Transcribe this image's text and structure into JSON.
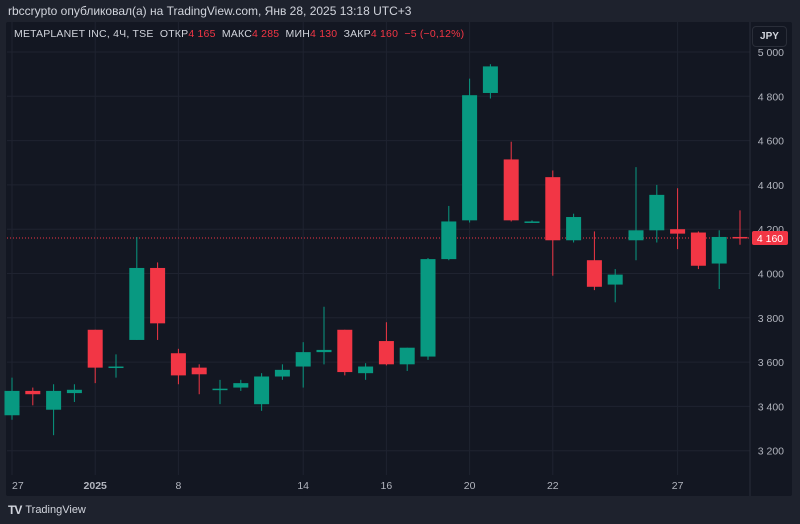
{
  "header": {
    "published": "rbccrypto опубликовал(а) на TradingView.com, Янв 28, 2025 13:18 UTC+3"
  },
  "legend": {
    "symbol": "METAPLANET INC, 4Ч, TSE",
    "open_label": "ОТКР",
    "open": "4 165",
    "high_label": "МАКС",
    "high": "4 285",
    "low_label": "МИН",
    "low": "4 130",
    "close_label": "ЗАКР",
    "close": "4 160",
    "change": "−5 (−0,12%)"
  },
  "currency_button": "JPY",
  "footer": {
    "logo_text": "TradingView"
  },
  "colors": {
    "up": "#089981",
    "down": "#f23645",
    "background": "#131722",
    "grid": "#1f2330"
  },
  "chart_data": {
    "type": "candlestick",
    "y_axis": {
      "ticks": [
        "5 000",
        "4 800",
        "4 600",
        "4 400",
        "4 200",
        "4 000",
        "3 800",
        "3 600",
        "3 400",
        "3 200"
      ],
      "tick_values": [
        5000,
        4800,
        4600,
        4400,
        4200,
        4000,
        3800,
        3600,
        3400,
        3200
      ],
      "range": [
        3150,
        5050
      ]
    },
    "x_axis": {
      "labels": [
        {
          "text": "27",
          "candle": 0
        },
        {
          "text": "2025",
          "candle": 4,
          "bold": true
        },
        {
          "text": "8",
          "candle": 8
        },
        {
          "text": "14",
          "candle": 14
        },
        {
          "text": "16",
          "candle": 18
        },
        {
          "text": "20",
          "candle": 22
        },
        {
          "text": "22",
          "candle": 26
        },
        {
          "text": "27",
          "candle": 32
        }
      ]
    },
    "last_price": {
      "value": 4160,
      "label": "4 160"
    },
    "candles": [
      [
        3360,
        3470,
        3530,
        3340
      ],
      [
        3470,
        3455,
        3485,
        3405
      ],
      [
        3385,
        3470,
        3500,
        3270
      ],
      [
        3460,
        3475,
        3500,
        3420
      ],
      [
        3746,
        3575,
        3746,
        3505
      ],
      [
        3580,
        3580,
        3635,
        3530
      ],
      [
        3700,
        4025,
        4165,
        3700
      ],
      [
        4025,
        3775,
        4050,
        3700
      ],
      [
        3640,
        3540,
        3660,
        3500
      ],
      [
        3575,
        3545,
        3590,
        3455
      ],
      [
        3480,
        3480,
        3520,
        3410
      ],
      [
        3485,
        3505,
        3520,
        3470
      ],
      [
        3410,
        3535,
        3550,
        3380
      ],
      [
        3535,
        3565,
        3590,
        3520
      ],
      [
        3580,
        3645,
        3690,
        3485
      ],
      [
        3645,
        3655,
        3850,
        3590
      ],
      [
        3746,
        3555,
        3746,
        3540
      ],
      [
        3550,
        3580,
        3595,
        3520
      ],
      [
        3695,
        3590,
        3780,
        3585
      ],
      [
        3590,
        3665,
        3665,
        3560
      ],
      [
        3625,
        4065,
        4070,
        3610
      ],
      [
        4065,
        4235,
        4305,
        4060
      ],
      [
        4240,
        4805,
        4880,
        4230
      ],
      [
        4815,
        4935,
        4945,
        4790
      ],
      [
        4515,
        4240,
        4595,
        4235
      ],
      [
        4235,
        4235,
        4240,
        4230
      ],
      [
        4435,
        4150,
        4465,
        3990
      ],
      [
        4150,
        4255,
        4270,
        4140
      ],
      [
        4060,
        3940,
        4190,
        3925
      ],
      [
        3950,
        3995,
        4020,
        3870
      ],
      [
        4150,
        4195,
        4480,
        4060
      ],
      [
        4195,
        4355,
        4400,
        4140
      ],
      [
        4200,
        4180,
        4385,
        4110
      ],
      [
        4185,
        4035,
        4190,
        4020
      ],
      [
        4045,
        4165,
        4195,
        3930
      ],
      [
        4165,
        4160,
        4285,
        4130
      ]
    ]
  }
}
